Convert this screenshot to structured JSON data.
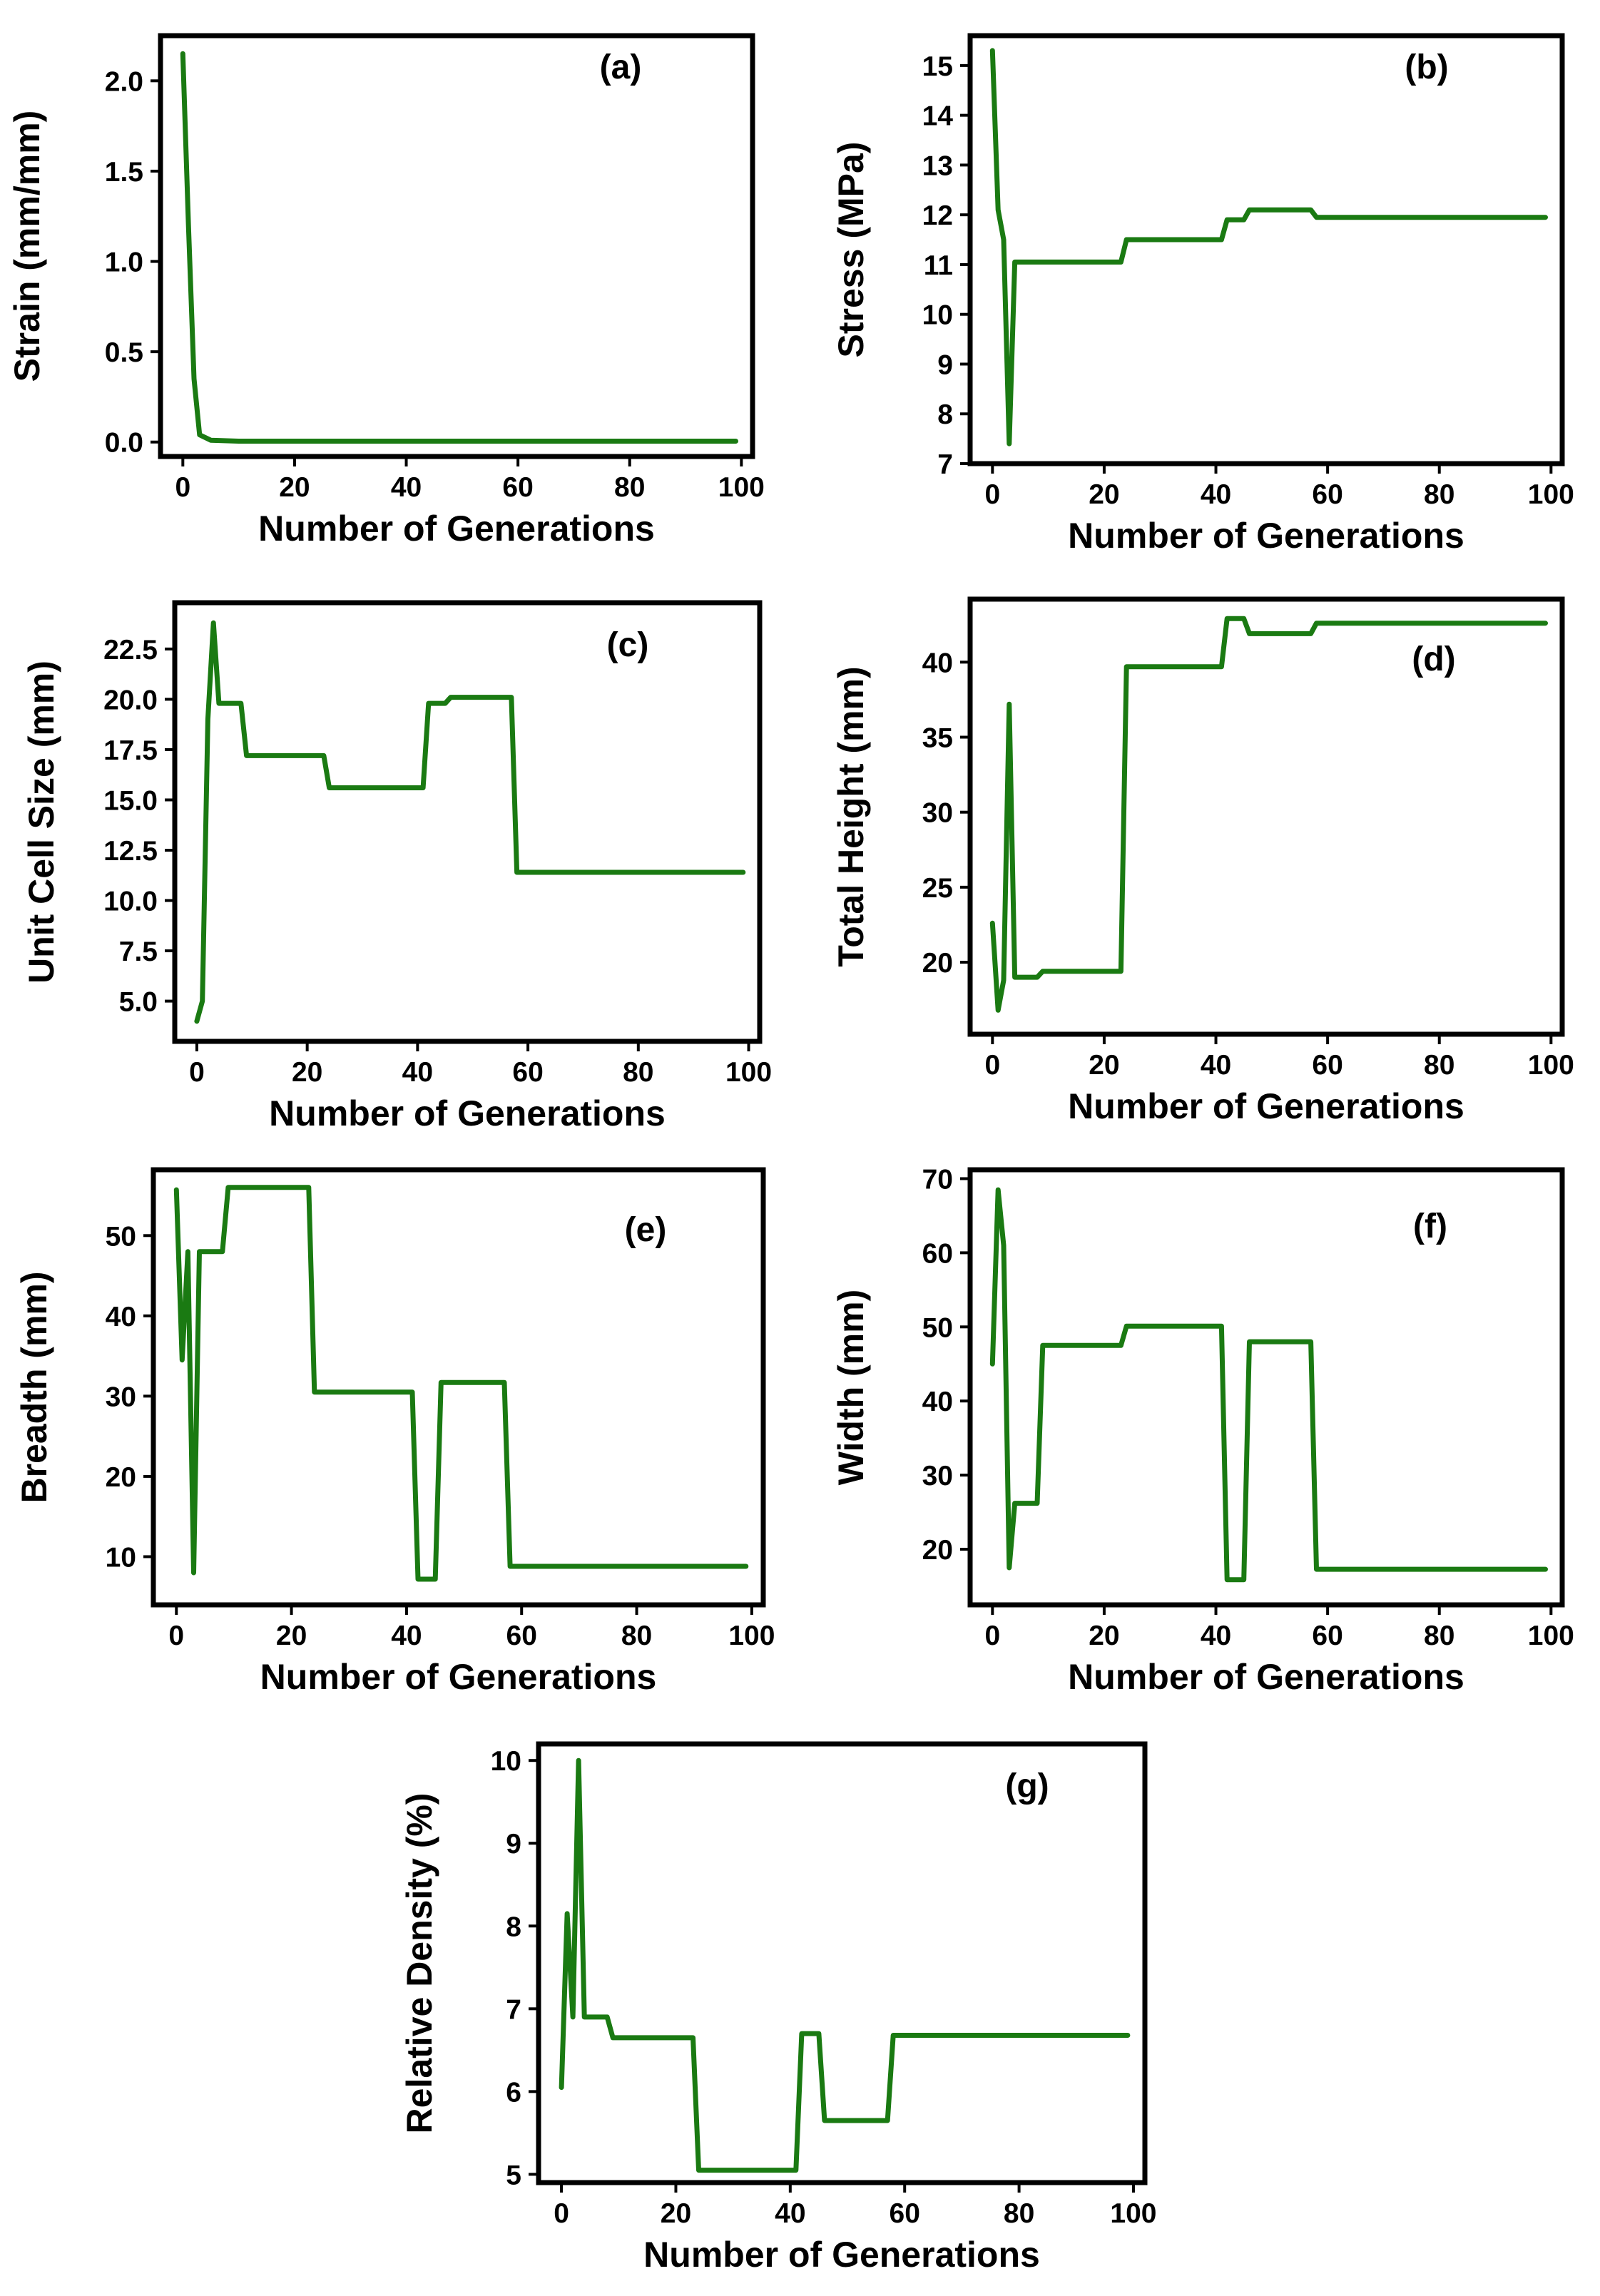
{
  "figure": {
    "caption": ""
  },
  "chart_data": [
    {
      "id": "a",
      "type": "line",
      "panel_label": "(a)",
      "xlabel": "Number of Generations",
      "ylabel": "Strain (mm/mm)",
      "xlim": [
        -4,
        102
      ],
      "ylim": [
        -0.08,
        2.25
      ],
      "xticks": [
        0,
        20,
        40,
        60,
        80,
        100
      ],
      "xtick_labels": [
        "0",
        "20",
        "40",
        "60",
        "80",
        "100"
      ],
      "yticks": [
        0.0,
        0.5,
        1.0,
        1.5,
        2.0
      ],
      "ytick_labels": [
        "0.0",
        "0.5",
        "1.0",
        "1.5",
        "2.0"
      ],
      "series": [
        {
          "name": "Strain",
          "color": "#1a7a12",
          "x": [
            0,
            1,
            2,
            3,
            5,
            10,
            99
          ],
          "y": [
            2.15,
            1.2,
            0.35,
            0.04,
            0.01,
            0.005,
            0.005
          ]
        }
      ]
    },
    {
      "id": "b",
      "type": "line",
      "panel_label": "(b)",
      "xlabel": "Number of Generations",
      "ylabel": "Stress (MPa)",
      "xlim": [
        -4,
        102
      ],
      "ylim": [
        7,
        15.6
      ],
      "xticks": [
        0,
        20,
        40,
        60,
        80,
        100
      ],
      "xtick_labels": [
        "0",
        "20",
        "40",
        "60",
        "80",
        "100"
      ],
      "yticks": [
        7,
        8,
        9,
        10,
        11,
        12,
        13,
        14,
        15
      ],
      "ytick_labels": [
        "7",
        "8",
        "9",
        "10",
        "11",
        "12",
        "13",
        "14",
        "15"
      ],
      "series": [
        {
          "name": "Stress",
          "color": "#1a7a12",
          "x": [
            0,
            1,
            2,
            3,
            4,
            23,
            24,
            41,
            42,
            45,
            46,
            57,
            58,
            99
          ],
          "y": [
            15.3,
            12.1,
            11.5,
            7.4,
            11.05,
            11.05,
            11.5,
            11.5,
            11.9,
            11.9,
            12.1,
            12.1,
            11.95,
            11.95
          ]
        }
      ]
    },
    {
      "id": "c",
      "type": "line",
      "panel_label": "(c)",
      "xlabel": "Number of Generations",
      "ylabel": "Unit Cell Size (mm)",
      "xlim": [
        -4,
        102
      ],
      "ylim": [
        3,
        24.8
      ],
      "xticks": [
        0,
        20,
        40,
        60,
        80,
        100
      ],
      "xtick_labels": [
        "0",
        "20",
        "40",
        "60",
        "80",
        "100"
      ],
      "yticks": [
        5.0,
        7.5,
        10.0,
        12.5,
        15.0,
        17.5,
        20.0,
        22.5
      ],
      "ytick_labels": [
        "5.0",
        "7.5",
        "10.0",
        "12.5",
        "15.0",
        "17.5",
        "20.0",
        "22.5"
      ],
      "series": [
        {
          "name": "Unit Cell Size",
          "color": "#1a7a12",
          "x": [
            0,
            1,
            2,
            3,
            4,
            8,
            9,
            23,
            24,
            41,
            42,
            45,
            46,
            57,
            58,
            99
          ],
          "y": [
            4.0,
            5.0,
            19.0,
            23.8,
            19.8,
            19.8,
            17.2,
            17.2,
            15.6,
            15.6,
            19.8,
            19.8,
            20.1,
            20.1,
            11.4,
            11.4
          ]
        }
      ]
    },
    {
      "id": "d",
      "type": "line",
      "panel_label": "(d)",
      "xlabel": "Number of Generations",
      "ylabel": "Total Height (mm)",
      "xlim": [
        -4,
        102
      ],
      "ylim": [
        15.2,
        44.2
      ],
      "xticks": [
        0,
        20,
        40,
        60,
        80,
        100
      ],
      "xtick_labels": [
        "0",
        "20",
        "40",
        "60",
        "80",
        "100"
      ],
      "yticks": [
        20,
        25,
        30,
        35,
        40
      ],
      "ytick_labels": [
        "20",
        "25",
        "30",
        "35",
        "40"
      ],
      "series": [
        {
          "name": "Total Height",
          "color": "#1a7a12",
          "x": [
            0,
            1,
            2,
            3,
            4,
            8,
            9,
            23,
            24,
            41,
            42,
            45,
            46,
            57,
            58,
            99
          ],
          "y": [
            22.6,
            16.8,
            18.8,
            37.2,
            19.0,
            19.0,
            19.4,
            19.4,
            39.7,
            39.7,
            42.9,
            42.9,
            41.9,
            41.9,
            42.6,
            42.6
          ]
        }
      ]
    },
    {
      "id": "e",
      "type": "line",
      "panel_label": "(e)",
      "xlabel": "Number of Generations",
      "ylabel": "Breadth (mm)",
      "xlim": [
        -4,
        102
      ],
      "ylim": [
        4,
        58.2
      ],
      "xticks": [
        0,
        20,
        40,
        60,
        80,
        100
      ],
      "xtick_labels": [
        "0",
        "20",
        "40",
        "60",
        "80",
        "100"
      ],
      "yticks": [
        10,
        20,
        30,
        40,
        50
      ],
      "ytick_labels": [
        "10",
        "20",
        "30",
        "40",
        "50"
      ],
      "series": [
        {
          "name": "Breadth",
          "color": "#1a7a12",
          "x": [
            0,
            1,
            2,
            3,
            4,
            8,
            9,
            23,
            24,
            41,
            42,
            45,
            46,
            57,
            58,
            99
          ],
          "y": [
            55.7,
            34.5,
            48.0,
            8.0,
            48.0,
            48.0,
            56.0,
            56.0,
            30.5,
            30.5,
            7.2,
            7.2,
            31.7,
            31.7,
            8.8,
            8.8
          ]
        }
      ]
    },
    {
      "id": "f",
      "type": "line",
      "panel_label": "(f)",
      "xlabel": "Number of Generations",
      "ylabel": "Width (mm)",
      "xlim": [
        -4,
        102
      ],
      "ylim": [
        12.5,
        71.2
      ],
      "xticks": [
        0,
        20,
        40,
        60,
        80,
        100
      ],
      "xtick_labels": [
        "0",
        "20",
        "40",
        "60",
        "80",
        "100"
      ],
      "yticks": [
        20,
        30,
        40,
        50,
        60,
        70
      ],
      "ytick_labels": [
        "20",
        "30",
        "40",
        "50",
        "60",
        "70"
      ],
      "series": [
        {
          "name": "Width",
          "color": "#1a7a12",
          "x": [
            0,
            1,
            2,
            3,
            4,
            8,
            9,
            23,
            24,
            41,
            42,
            45,
            46,
            57,
            58,
            99
          ],
          "y": [
            45.0,
            68.5,
            61.0,
            17.5,
            26.2,
            26.2,
            47.5,
            47.5,
            50.1,
            50.1,
            15.9,
            15.9,
            48.0,
            48.0,
            17.3,
            17.3
          ]
        }
      ]
    },
    {
      "id": "g",
      "type": "line",
      "panel_label": "(g)",
      "xlabel": "Number of Generations",
      "ylabel": "Relative Density (%)",
      "xlim": [
        -4,
        102
      ],
      "ylim": [
        4.9,
        10.2
      ],
      "xticks": [
        0,
        20,
        40,
        60,
        80,
        100
      ],
      "xtick_labels": [
        "0",
        "20",
        "40",
        "60",
        "80",
        "100"
      ],
      "yticks": [
        5,
        6,
        7,
        8,
        9,
        10
      ],
      "ytick_labels": [
        "5",
        "6",
        "7",
        "8",
        "9",
        "10"
      ],
      "series": [
        {
          "name": "Relative Density",
          "color": "#1a7a12",
          "x": [
            0,
            1,
            2,
            3,
            4,
            8,
            9,
            23,
            24,
            41,
            42,
            45,
            46,
            57,
            58,
            99
          ],
          "y": [
            6.05,
            8.15,
            6.9,
            10.0,
            6.9,
            6.9,
            6.65,
            6.65,
            5.05,
            5.05,
            6.7,
            6.7,
            5.65,
            5.65,
            6.68,
            6.68
          ]
        }
      ]
    }
  ]
}
